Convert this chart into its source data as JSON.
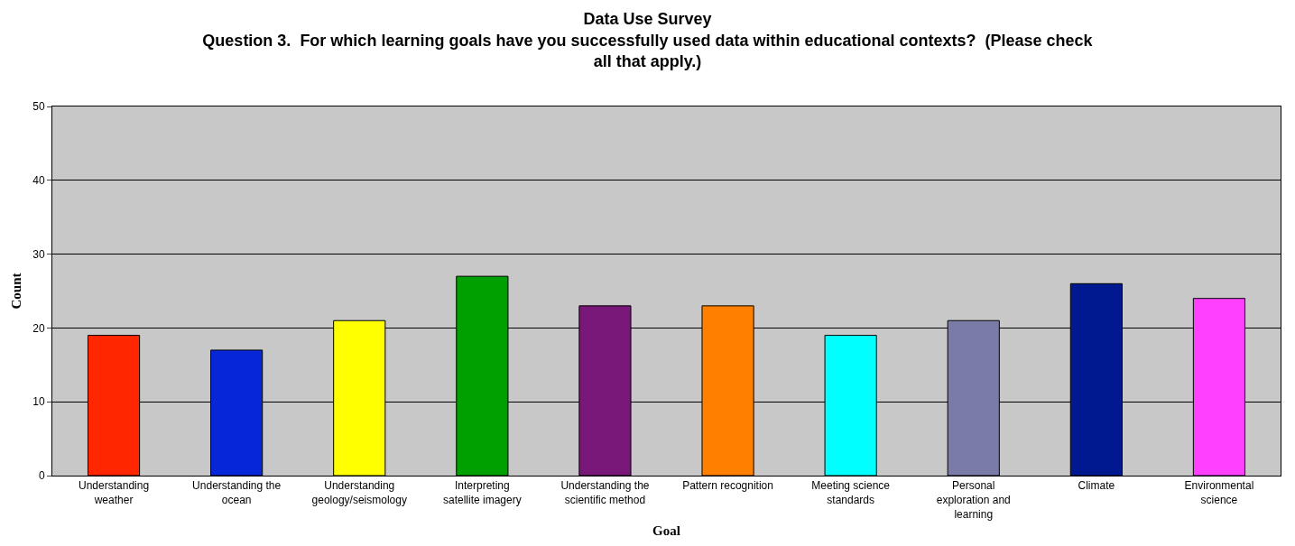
{
  "chart_data": {
    "type": "bar",
    "title": "Data Use Survey",
    "subtitle": "Question 3.  For which learning goals have you successfully used data within educational contexts?  (Please check all that apply.)",
    "xlabel": "Goal",
    "ylabel": "Count",
    "categories": [
      "Understanding weather",
      "Understanding the ocean",
      "Understanding geology/seismology",
      "Interpreting satellite imagery",
      "Understanding the scientific method",
      "Pattern recognition",
      "Meeting science standards",
      "Personal exploration and learning",
      "Climate",
      "Environmental science"
    ],
    "values": [
      19,
      17,
      21,
      27,
      23,
      23,
      19,
      21,
      26,
      24
    ],
    "colors": [
      "#ff2600",
      "#0527d8",
      "#ffff00",
      "#00a000",
      "#781878",
      "#ff7f00",
      "#00ffff",
      "#7b7ba8",
      "#001890",
      "#ff40ff"
    ],
    "ylim": [
      0,
      50
    ],
    "yticks": [
      0,
      10,
      20,
      30,
      40,
      50
    ],
    "grid": "y"
  }
}
